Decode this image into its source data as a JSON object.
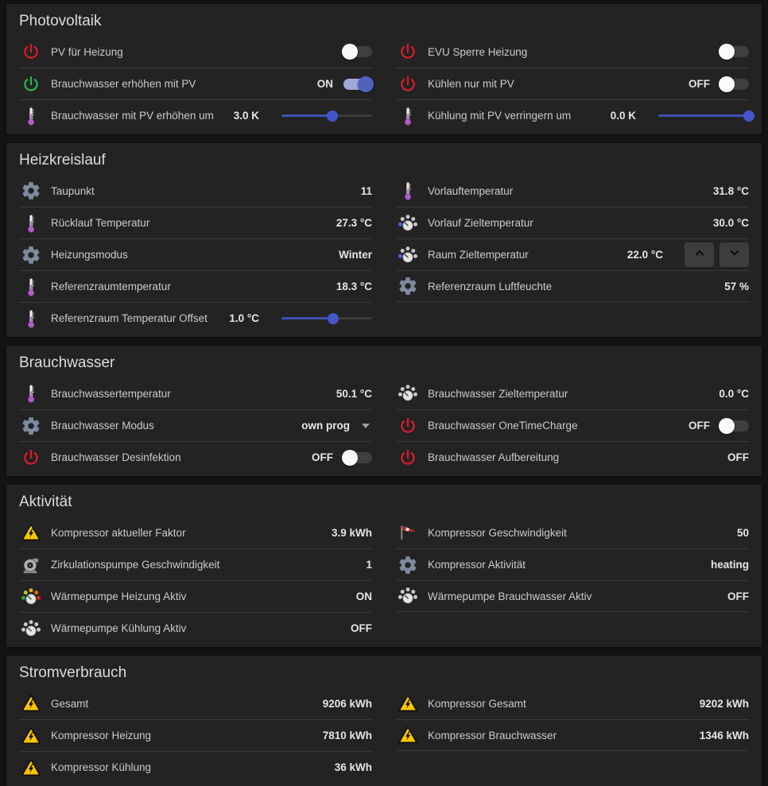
{
  "theme": {
    "page_bg": "#141414",
    "card_bg": "#232323",
    "divider": "#3a3a3a",
    "title_color": "#dcdcdc",
    "label_color": "#cbcbcb",
    "value_color": "#e6e6e6",
    "accent_blue": "#3f51b5",
    "slider_track": "#3b3b3b",
    "toggle_on_track": "#9fa8da",
    "toggle_on_knob": "#5161bd",
    "toggle_off_track": "#3f3f3f",
    "toggle_off_knob": "#fafafa",
    "icon_colors": {
      "power_red": "#e21b2c",
      "power_green": "#2db84b",
      "thermometer_fluid": "#b45ec8",
      "thermometer_tube": "#ececec",
      "gear": "#7e8aa0",
      "gauge_grey": "#c9c9c9",
      "gauge_blue": "#3c6cd8",
      "gauge_color_segments": [
        "#2fa33c",
        "#b5cc1e",
        "#e8b019",
        "#e06c14",
        "#d92525"
      ],
      "warning_yellow": "#f7c600",
      "windsock_red": "#cc2a2a",
      "pump_grey": "#adb3bb"
    }
  },
  "sections": [
    {
      "title": "Photovoltaik",
      "columns": [
        {
          "rows": [
            {
              "icon": "power-red",
              "label": "PV für Heizung",
              "control": {
                "type": "toggle",
                "on": false
              }
            },
            {
              "icon": "power-green",
              "label": "Brauchwasser erhöhen mit PV",
              "value": "ON",
              "control": {
                "type": "toggle",
                "on": true
              }
            },
            {
              "icon": "thermometer",
              "label": "Brauchwasser mit PV erhöhen um",
              "value": "3.0 K",
              "control": {
                "type": "slider",
                "percent": 56
              }
            }
          ]
        },
        {
          "rows": [
            {
              "icon": "power-red",
              "label": "EVU Sperre Heizung",
              "control": {
                "type": "toggle",
                "on": false
              }
            },
            {
              "icon": "power-red",
              "label": "Kühlen nur mit PV",
              "value": "OFF",
              "control": {
                "type": "toggle",
                "on": false
              }
            },
            {
              "icon": "thermometer",
              "label": "Kühlung mit PV verringern um",
              "value": "0.0 K",
              "control": {
                "type": "slider",
                "percent": 100
              }
            }
          ]
        }
      ]
    },
    {
      "title": "Heizkreislauf",
      "columns": [
        {
          "rows": [
            {
              "icon": "gear",
              "label": "Taupunkt",
              "value": "11"
            },
            {
              "icon": "thermometer",
              "label": "Rücklauf Temperatur",
              "value": "27.3 °C"
            },
            {
              "icon": "gear",
              "label": "Heizungsmodus",
              "value": "Winter"
            },
            {
              "icon": "thermometer",
              "label": "Referenzraumtemperatur",
              "value": "18.3 °C"
            },
            {
              "icon": "thermometer",
              "label": "Referenzraum Temperatur Offset",
              "value": "1.0 °C",
              "control": {
                "type": "slider",
                "percent": 57
              }
            }
          ]
        },
        {
          "trailing_divider": true,
          "rows": [
            {
              "icon": "thermometer",
              "label": "Vorlauftemperatur",
              "value": "31.8 °C"
            },
            {
              "icon": "gauge-blue",
              "label": "Vorlauf Zieltemperatur",
              "value": "30.0 °C"
            },
            {
              "icon": "gauge-blue",
              "label": "Raum Zieltemperatur",
              "value": "22.0 °C",
              "control": {
                "type": "stepper"
              }
            },
            {
              "icon": "gear",
              "label": "Referenzraum Luftfeuchte",
              "value": "57 %"
            }
          ]
        }
      ]
    },
    {
      "title": "Brauchwasser",
      "columns": [
        {
          "rows": [
            {
              "icon": "thermometer",
              "label": "Brauchwassertemperatur",
              "value": "50.1 °C"
            },
            {
              "icon": "gear",
              "label": "Brauchwasser Modus",
              "value": "own prog",
              "control": {
                "type": "dropdown"
              }
            },
            {
              "icon": "power-red",
              "label": "Brauchwasser Desinfektion",
              "value": "OFF",
              "control": {
                "type": "toggle",
                "on": false
              }
            }
          ]
        },
        {
          "rows": [
            {
              "icon": "gauge-grey",
              "label": "Brauchwasser Zieltemperatur",
              "value": "0.0 °C"
            },
            {
              "icon": "power-red",
              "label": "Brauchwasser OneTimeCharge",
              "value": "OFF",
              "control": {
                "type": "toggle",
                "on": false
              }
            },
            {
              "icon": "power-red",
              "label": "Brauchwasser Aufbereitung",
              "value": "OFF"
            }
          ]
        }
      ]
    },
    {
      "title": "Aktivität",
      "columns": [
        {
          "rows": [
            {
              "icon": "warning-electric",
              "label": "Kompressor aktueller Faktor",
              "value": "3.9 kWh"
            },
            {
              "icon": "pump",
              "label": "Zirkulationspumpe Geschwindigkeit",
              "value": "1"
            },
            {
              "icon": "gauge-color",
              "label": "Wärmepumpe Heizung Aktiv",
              "value": "ON"
            },
            {
              "icon": "gauge-grey",
              "label": "Wärmepumpe Kühlung Aktiv",
              "value": "OFF"
            }
          ]
        },
        {
          "trailing_divider": true,
          "rows": [
            {
              "icon": "windsock",
              "label": "Kompressor Geschwindigkeit",
              "value": "50"
            },
            {
              "icon": "gear",
              "label": "Kompressor Aktivität",
              "value": "heating"
            },
            {
              "icon": "gauge-grey",
              "label": "Wärmepumpe Brauchwasser Aktiv",
              "value": "OFF"
            }
          ]
        }
      ]
    },
    {
      "title": "Stromverbrauch",
      "columns": [
        {
          "rows": [
            {
              "icon": "warning-electric",
              "label": "Gesamt",
              "value": "9206 kWh"
            },
            {
              "icon": "warning-electric",
              "label": "Kompressor Heizung",
              "value": "7810 kWh"
            },
            {
              "icon": "warning-electric",
              "label": "Kompressor Kühlung",
              "value": "36 kWh"
            }
          ]
        },
        {
          "trailing_divider": true,
          "rows": [
            {
              "icon": "warning-electric",
              "label": "Kompressor Gesamt",
              "value": "9202 kWh"
            },
            {
              "icon": "warning-electric",
              "label": "Kompressor Brauchwasser",
              "value": "1346 kWh"
            }
          ]
        }
      ]
    }
  ]
}
